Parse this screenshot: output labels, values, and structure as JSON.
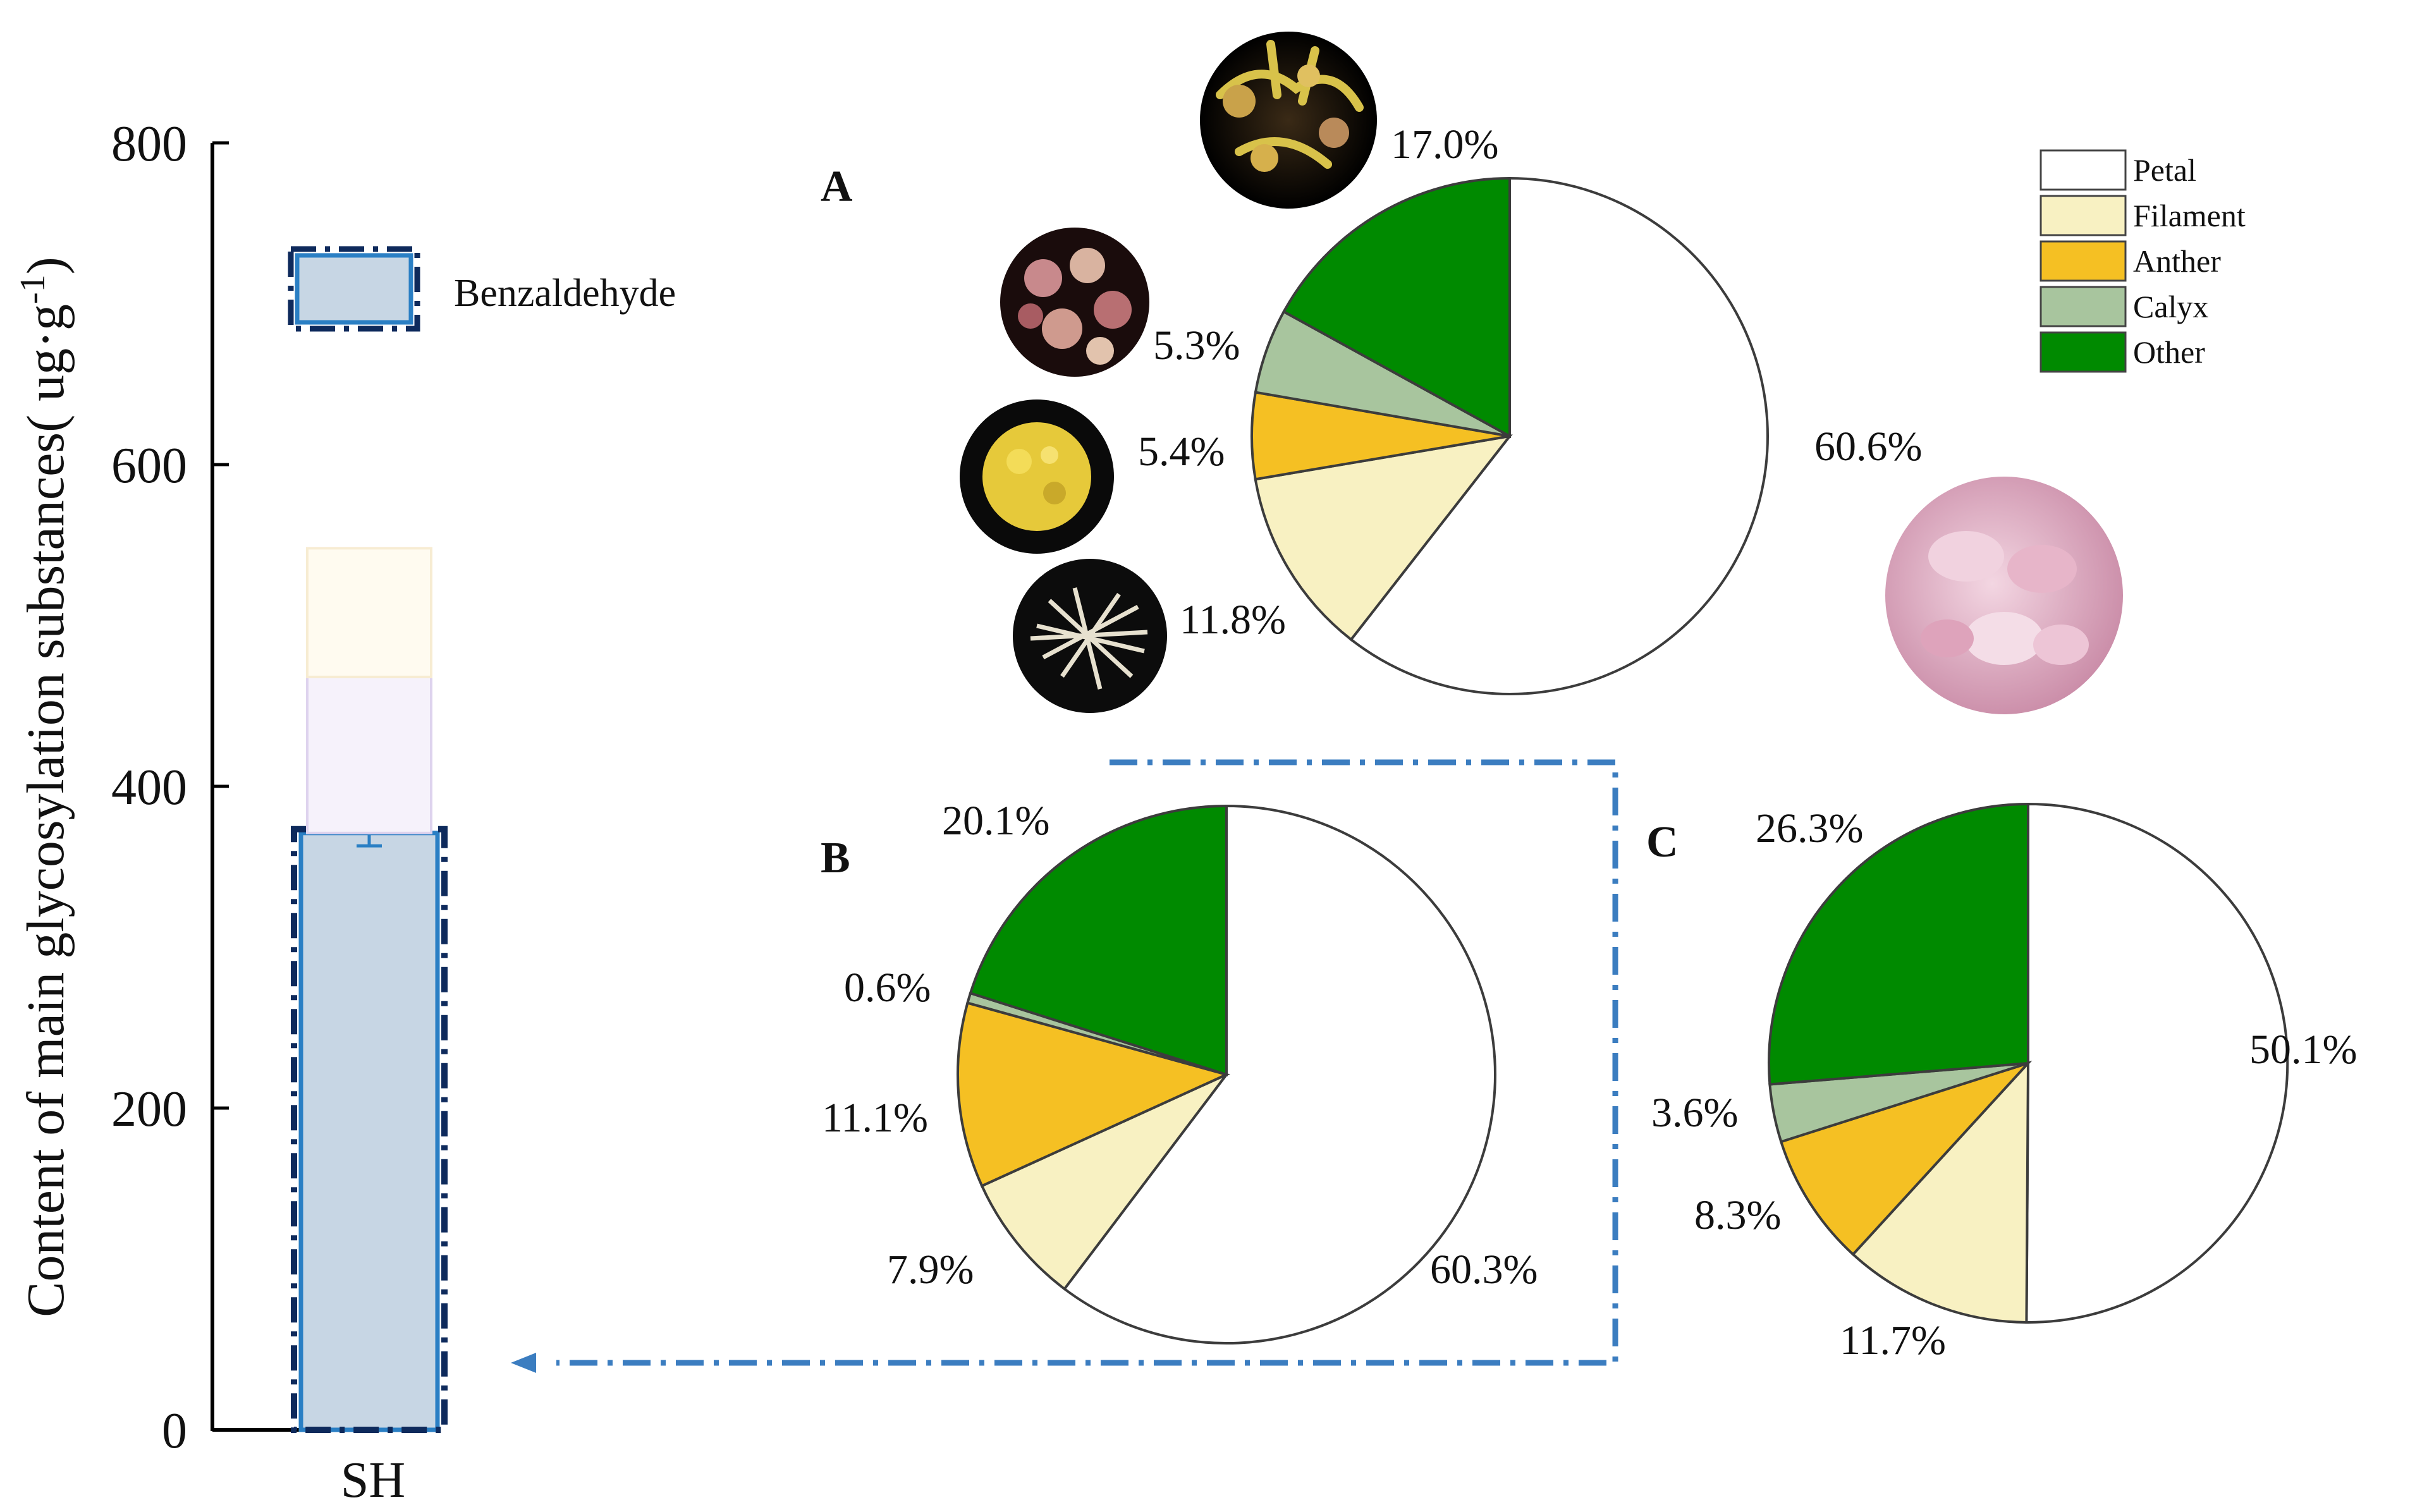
{
  "chart_data": [
    {
      "type": "bar",
      "title": "",
      "ylabel": "Content of main glycosylation substances( ug·g",
      "ylabel_sup": "-1",
      "ylabel_close": ")",
      "categories": [
        "SH"
      ],
      "ylim": [
        0,
        800
      ],
      "yticks": [
        0,
        200,
        400,
        600,
        800
      ],
      "grid": false,
      "legend": {
        "label": "Benzaldehyde",
        "placement": "top-right"
      },
      "series": [
        {
          "name": "Benzaldehyde",
          "values": [
            371
          ],
          "error": [
            8
          ],
          "color": "#c7d6e4",
          "edge": "#2a7fc4"
        },
        {
          "name": "Unlabeled layer 2 (faint)",
          "values": [
            97
          ],
          "color": "#f6f2fb",
          "edge": "#ded3ee"
        },
        {
          "name": "Unlabeled layer 3 (faint)",
          "values": [
            80
          ],
          "color": "#fffbf0",
          "edge": "#f7ecd2"
        }
      ]
    },
    {
      "type": "pie",
      "panel": "A",
      "labels": [
        "Petal",
        "Filament",
        "Anther",
        "Calyx",
        "Other"
      ],
      "values": [
        60.6,
        11.8,
        5.4,
        5.3,
        17.0
      ],
      "value_labels": [
        "60.6%",
        "11.8%",
        "5.4%",
        "5.3%",
        "17.0%"
      ]
    },
    {
      "type": "pie",
      "panel": "B",
      "labels": [
        "Petal",
        "Filament",
        "Anther",
        "Calyx",
        "Other"
      ],
      "values": [
        60.3,
        7.9,
        11.1,
        0.6,
        20.1
      ],
      "value_labels": [
        "60.3%",
        "7.9%",
        "11.1%",
        "0.6%",
        "20.1%"
      ]
    },
    {
      "type": "pie",
      "panel": "C",
      "labels": [
        "Petal",
        "Filament",
        "Anther",
        "Calyx",
        "Other"
      ],
      "values": [
        50.1,
        11.7,
        8.3,
        3.6,
        26.3
      ],
      "value_labels": [
        "50.1%",
        "11.7%",
        "8.3%",
        "3.6%",
        "26.3%"
      ]
    }
  ],
  "legend": {
    "items": [
      {
        "label": "Petal",
        "color": "#ffffff"
      },
      {
        "label": "Filament",
        "color": "#f8f1c2"
      },
      {
        "label": "Anther",
        "color": "#f5c023"
      },
      {
        "label": "Calyx",
        "color": "#a8c59e"
      },
      {
        "label": "Other",
        "color": "#008a00"
      }
    ]
  },
  "panels": {
    "a": "A",
    "b": "B",
    "c": "C"
  },
  "colors": {
    "connector": "#3b7dc0",
    "legend_dash": "#0e2a5c",
    "pie_edge": "#3c3c3c"
  },
  "photos": {
    "other": "mixed-flower-parts-photo",
    "calyx": "calyx-photo",
    "anther": "anther-photo",
    "filament": "filament-photo",
    "petal": "petal-photo"
  }
}
